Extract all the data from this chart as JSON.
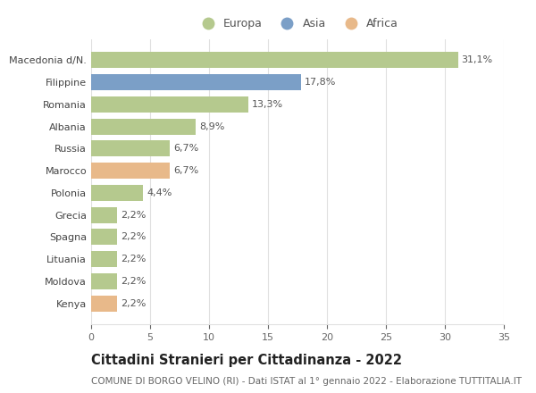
{
  "categories": [
    "Macedonia d/N.",
    "Filippine",
    "Romania",
    "Albania",
    "Russia",
    "Marocco",
    "Polonia",
    "Grecia",
    "Spagna",
    "Lituania",
    "Moldova",
    "Kenya"
  ],
  "values": [
    31.1,
    17.8,
    13.3,
    8.9,
    6.7,
    6.7,
    4.4,
    2.2,
    2.2,
    2.2,
    2.2,
    2.2
  ],
  "labels": [
    "31,1%",
    "17,8%",
    "13,3%",
    "8,9%",
    "6,7%",
    "6,7%",
    "4,4%",
    "2,2%",
    "2,2%",
    "2,2%",
    "2,2%",
    "2,2%"
  ],
  "colors": [
    "#b5c98e",
    "#7b9fc7",
    "#b5c98e",
    "#b5c98e",
    "#b5c98e",
    "#e8b98a",
    "#b5c98e",
    "#b5c98e",
    "#b5c98e",
    "#b5c98e",
    "#b5c98e",
    "#e8b98a"
  ],
  "legend_labels": [
    "Europa",
    "Asia",
    "Africa"
  ],
  "legend_colors": [
    "#b5c98e",
    "#7b9fc7",
    "#e8b98a"
  ],
  "xlim": [
    0,
    35
  ],
  "xticks": [
    0,
    5,
    10,
    15,
    20,
    25,
    30,
    35
  ],
  "title": "Cittadini Stranieri per Cittadinanza - 2022",
  "subtitle": "COMUNE DI BORGO VELINO (RI) - Dati ISTAT al 1° gennaio 2022 - Elaborazione TUTTITALIA.IT",
  "background_color": "#ffffff",
  "grid_color": "#e0e0e0",
  "bar_height": 0.72,
  "title_fontsize": 10.5,
  "subtitle_fontsize": 7.5,
  "label_fontsize": 8,
  "tick_fontsize": 8,
  "legend_fontsize": 9
}
